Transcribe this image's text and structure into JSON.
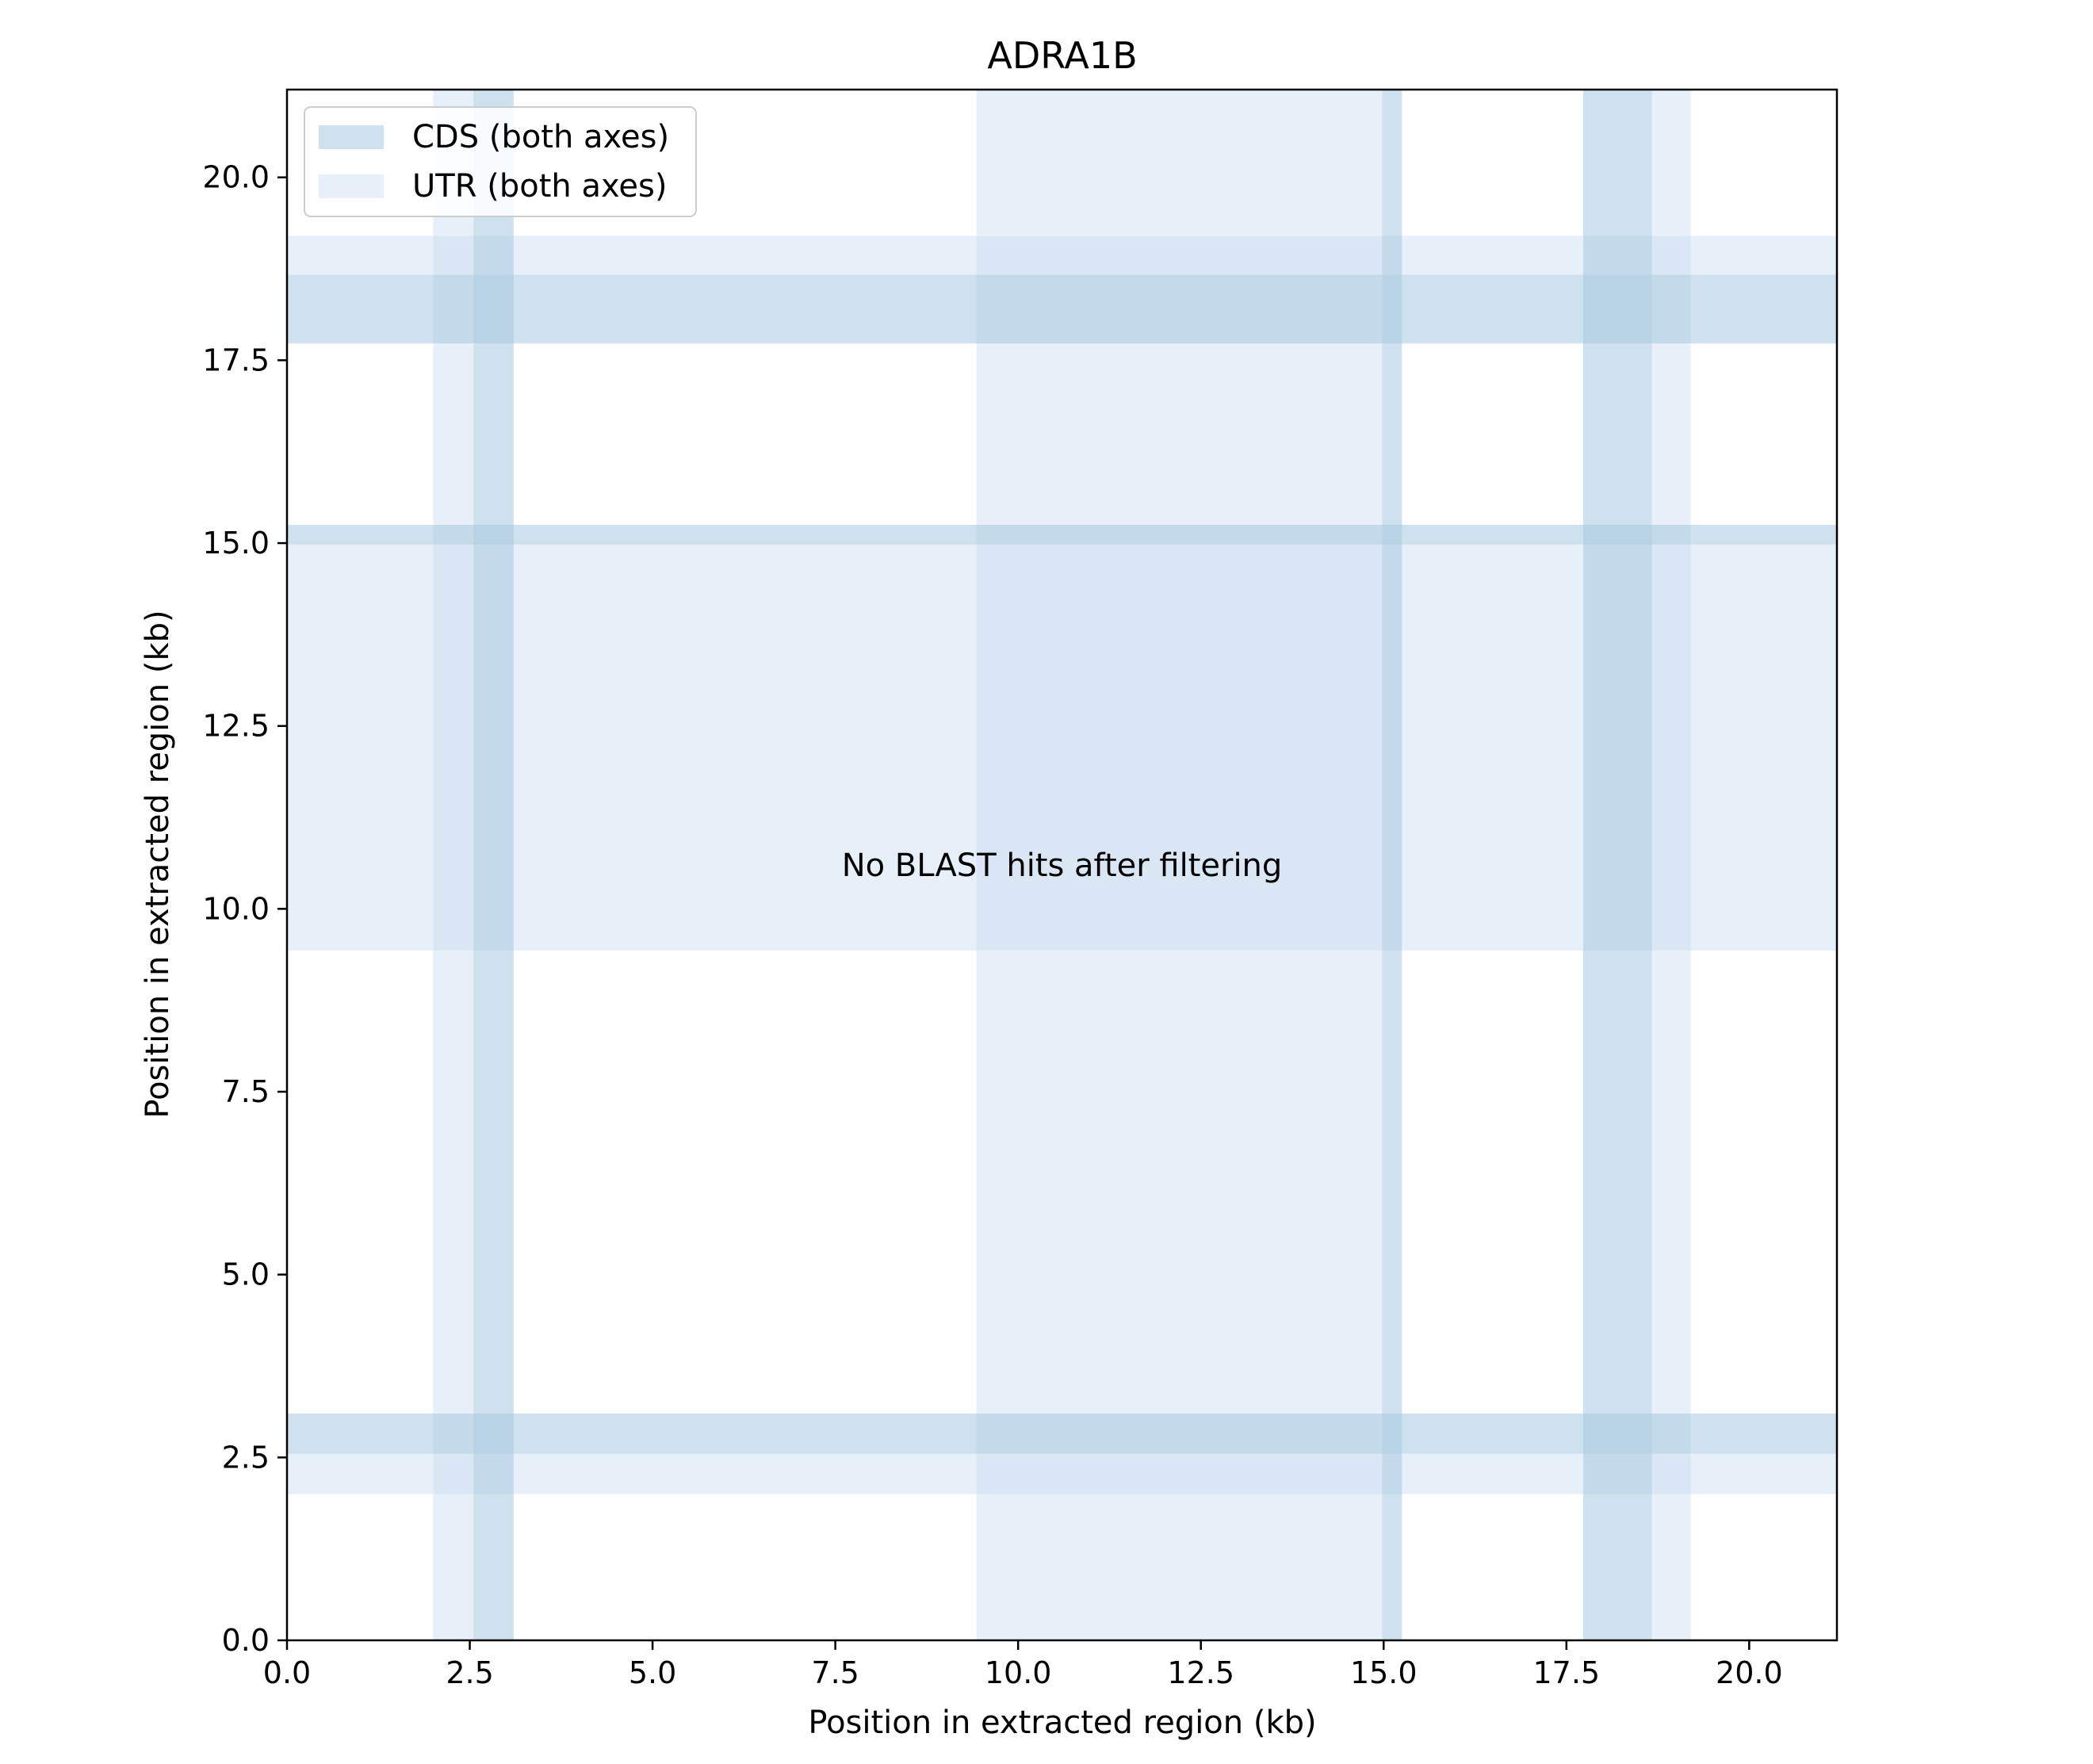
{
  "chart_data": {
    "type": "heatmap",
    "title": "ADRA1B",
    "xlabel": "Position in extracted region (kb)",
    "ylabel": "Position in extracted region (kb)",
    "xlim": [
      0,
      21.2
    ],
    "ylim": [
      0,
      21.2
    ],
    "x_ticks": [
      0.0,
      2.5,
      5.0,
      7.5,
      10.0,
      12.5,
      15.0,
      17.5,
      20.0
    ],
    "x_tick_labels": [
      "0.0",
      "2.5",
      "5.0",
      "7.5",
      "10.0",
      "12.5",
      "15.0",
      "17.5",
      "20.0"
    ],
    "y_ticks": [
      0.0,
      2.5,
      5.0,
      7.5,
      10.0,
      12.5,
      15.0,
      17.5,
      20.0
    ],
    "y_tick_labels": [
      "0.0",
      "2.5",
      "5.0",
      "7.5",
      "10.0",
      "12.5",
      "15.0",
      "17.5",
      "20.0"
    ],
    "grid": false,
    "legend_position": "top-left",
    "legend": [
      {
        "label": "CDS (both axes)",
        "key": "cds"
      },
      {
        "label": "UTR (both axes)",
        "key": "utr"
      }
    ],
    "regions": {
      "utr": [
        [
          2.0,
          2.55
        ],
        [
          9.43,
          14.98
        ],
        [
          18.67,
          19.2
        ]
      ],
      "cds": [
        [
          2.55,
          3.1
        ],
        [
          14.98,
          15.25
        ],
        [
          17.73,
          18.67
        ]
      ]
    },
    "annotation": "No BLAST hits after filtering",
    "colors": {
      "cds": "#a6c8e0",
      "utr": "#c6dbef",
      "cds_opacity": 0.55,
      "utr_opacity": 0.42
    }
  }
}
